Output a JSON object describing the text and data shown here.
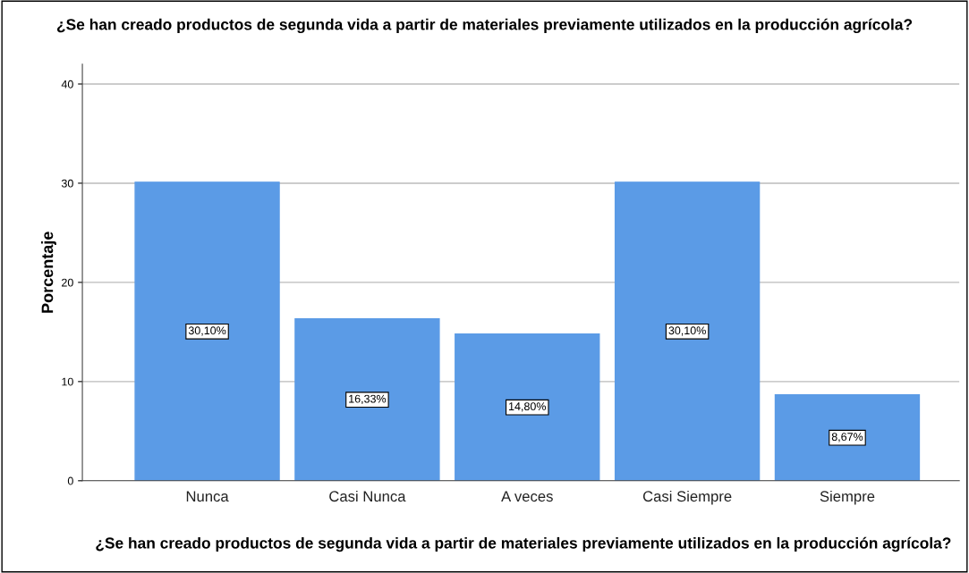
{
  "chart_data": {
    "type": "bar",
    "title": "¿Se han creado productos de segunda vida a partir de materiales previamente utilizados en la producción agrícola?",
    "xlabel": "¿Se han creado productos de segunda vida a partir de materiales previamente utilizados en la producción agrícola?",
    "ylabel": "Porcentaje",
    "categories": [
      "Nunca",
      "Casi Nunca",
      "A veces",
      "Casi Siempre",
      "Siempre"
    ],
    "values": [
      30.1,
      16.33,
      14.8,
      30.1,
      8.67
    ],
    "value_labels": [
      "30,10%",
      "16,33%",
      "14,80%",
      "30,10%",
      "8,67%"
    ],
    "color": "#5b9be6",
    "ylim": [
      0,
      42
    ],
    "yticks": [
      0,
      10,
      20,
      30,
      40
    ],
    "grid": "y"
  }
}
